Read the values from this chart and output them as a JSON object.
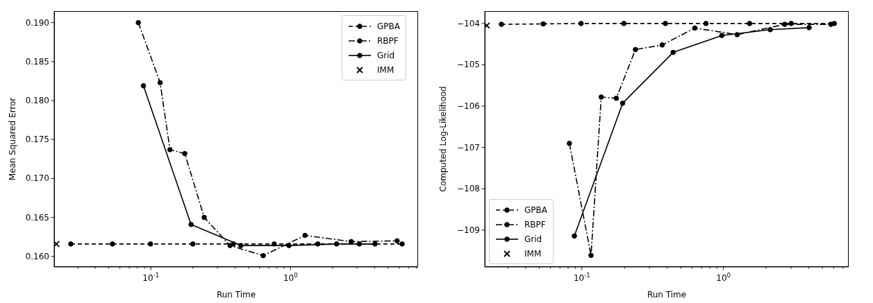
{
  "chart_data": [
    {
      "type": "line",
      "xlabel": "Run Time",
      "ylabel": "Mean Squared Error",
      "log": "x",
      "legend": "top right",
      "xlim": [
        0.0203,
        8.2
      ],
      "ylim": [
        0.15865,
        0.19148
      ],
      "xticks": [
        {
          "value": 0.03,
          "label": null
        },
        {
          "value": 0.04,
          "label": null
        },
        {
          "value": 0.05,
          "label": null
        },
        {
          "value": 0.06,
          "label": null
        },
        {
          "value": 0.07,
          "label": null
        },
        {
          "value": 0.08,
          "label": null
        },
        {
          "value": 0.09,
          "label": null
        },
        {
          "value": 0.1,
          "label": "10$^{-1}$"
        },
        {
          "value": 0.2,
          "label": null
        },
        {
          "value": 0.3,
          "label": null
        },
        {
          "value": 0.4,
          "label": null
        },
        {
          "value": 0.5,
          "label": null
        },
        {
          "value": 0.6,
          "label": null
        },
        {
          "value": 0.7,
          "label": null
        },
        {
          "value": 0.8,
          "label": null
        },
        {
          "value": 0.9,
          "label": null
        },
        {
          "value": 1,
          "label": "10$^{0}$"
        },
        {
          "value": 2,
          "label": null
        },
        {
          "value": 3,
          "label": null
        },
        {
          "value": 4,
          "label": null
        },
        {
          "value": 5,
          "label": null
        },
        {
          "value": 6,
          "label": null
        },
        {
          "value": 7,
          "label": null
        },
        {
          "value": 8,
          "label": null
        }
      ],
      "yticks": [
        {
          "value": 0.16,
          "label": "0.160"
        },
        {
          "value": 0.165,
          "label": "0.165"
        },
        {
          "value": 0.17,
          "label": "0.170"
        },
        {
          "value": 0.175,
          "label": "0.175"
        },
        {
          "value": 0.18,
          "label": "0.180"
        },
        {
          "value": 0.185,
          "label": "0.185"
        },
        {
          "value": 0.19,
          "label": "0.190"
        }
      ],
      "series": [
        {
          "name": "GPBA",
          "type": "line",
          "color": "#000000",
          "line_style": "dashed",
          "marker": "circle",
          "x": [
            0.0267,
            0.0531,
            0.0994,
            0.2,
            0.39,
            0.764,
            1.57,
            3.11,
            6.3
          ],
          "values": [
            0.1616,
            0.1616,
            0.1616,
            0.1616,
            0.1616,
            0.1616,
            0.1616,
            0.1616,
            0.1616
          ]
        },
        {
          "name": "RBPF",
          "type": "line",
          "color": "#000000",
          "line_style": "dashdot",
          "marker": "circle",
          "x": [
            0.0813,
            0.1165,
            0.137,
            0.175,
            0.241,
            0.369,
            0.638,
            1.27,
            2.72,
            5.8
          ],
          "values": [
            0.19,
            0.1823,
            0.1737,
            0.1732,
            0.165,
            0.1614,
            0.1601,
            0.1627,
            0.1619,
            0.162
          ]
        },
        {
          "name": "Grid",
          "type": "line",
          "color": "#000000",
          "line_style": "solid",
          "marker": "circle",
          "x": [
            0.0885,
            0.194,
            0.441,
            0.974,
            2.14,
            4.03
          ],
          "values": [
            0.1819,
            0.1641,
            0.1614,
            0.1614,
            0.1616,
            0.1616
          ]
        },
        {
          "name": "IMM",
          "type": "scatter",
          "color": "#000000",
          "marker": "cross",
          "x": [
            0.0211
          ],
          "values": [
            0.1616
          ]
        }
      ]
    },
    {
      "type": "line",
      "xlabel": "Run Time",
      "ylabel": "Computed Log-Likelihood",
      "log": "x",
      "legend": "bottom left",
      "xlim": [
        0.0206,
        7.67
      ],
      "ylim": [
        -109.89,
        -103.7
      ],
      "xticks": [
        {
          "value": 0.03,
          "label": null
        },
        {
          "value": 0.04,
          "label": null
        },
        {
          "value": 0.05,
          "label": null
        },
        {
          "value": 0.06,
          "label": null
        },
        {
          "value": 0.07,
          "label": null
        },
        {
          "value": 0.08,
          "label": null
        },
        {
          "value": 0.09,
          "label": null
        },
        {
          "value": 0.1,
          "label": "10$^{-1}$"
        },
        {
          "value": 0.2,
          "label": null
        },
        {
          "value": 0.3,
          "label": null
        },
        {
          "value": 0.4,
          "label": null
        },
        {
          "value": 0.5,
          "label": null
        },
        {
          "value": 0.6,
          "label": null
        },
        {
          "value": 0.7,
          "label": null
        },
        {
          "value": 0.8,
          "label": null
        },
        {
          "value": 0.9,
          "label": null
        },
        {
          "value": 1,
          "label": "10$^{0}$"
        },
        {
          "value": 2,
          "label": null
        },
        {
          "value": 3,
          "label": null
        },
        {
          "value": 4,
          "label": null
        },
        {
          "value": 5,
          "label": null
        },
        {
          "value": 6,
          "label": null
        },
        {
          "value": 7,
          "label": null
        }
      ],
      "yticks": [
        {
          "value": -109,
          "label": "−109"
        },
        {
          "value": -108,
          "label": "−108"
        },
        {
          "value": -107,
          "label": "−107"
        },
        {
          "value": -106,
          "label": "−106"
        },
        {
          "value": -105,
          "label": "−105"
        },
        {
          "value": -104,
          "label": "−104"
        }
      ],
      "series": [
        {
          "name": "GPBA",
          "type": "line",
          "color": "#000000",
          "line_style": "dashed",
          "marker": "circle",
          "x": [
            0.027,
            0.0533,
            0.0987,
            0.198,
            0.389,
            0.753,
            1.53,
            3.01,
            6.07
          ],
          "values": [
            -104.02,
            -104.01,
            -104.0,
            -104.0,
            -104.0,
            -104.0,
            -104.0,
            -104.0,
            -104.0
          ]
        },
        {
          "name": "RBPF",
          "type": "line",
          "color": "#000000",
          "line_style": "dashdot",
          "marker": "circle",
          "x": [
            0.0816,
            0.116,
            0.137,
            0.175,
            0.239,
            0.369,
            0.628,
            1.25,
            2.71,
            5.74
          ],
          "values": [
            -106.9,
            -109.61,
            -105.78,
            -105.81,
            -104.63,
            -104.52,
            -104.11,
            -104.27,
            -104.02,
            -104.02
          ]
        },
        {
          "name": "Grid",
          "type": "line",
          "color": "#000000",
          "line_style": "solid",
          "marker": "circle",
          "x": [
            0.0885,
            0.194,
            0.441,
            0.974,
            2.14,
            4.03
          ],
          "values": [
            -109.14,
            -105.93,
            -104.7,
            -104.29,
            -104.15,
            -104.1
          ]
        },
        {
          "name": "IMM",
          "type": "scatter",
          "color": "#000000",
          "marker": "cross",
          "x": [
            0.0213
          ],
          "values": [
            -104.05
          ]
        }
      ]
    }
  ]
}
